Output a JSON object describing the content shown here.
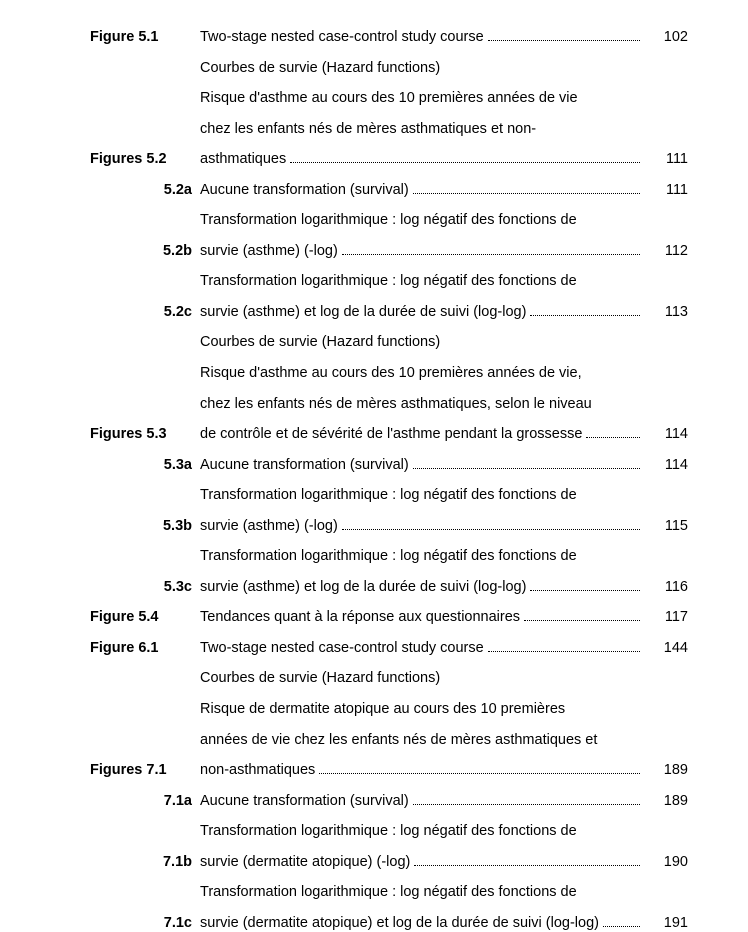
{
  "entries": [
    {
      "label": "Figure  5.1",
      "labelClass": "",
      "lines": [
        "Two-stage nested case-control study course"
      ],
      "page": "102"
    },
    {
      "label": "Figures 5.2",
      "labelClass": "",
      "lines": [
        "Courbes de survie (Hazard functions)",
        "Risque d'asthme au cours des 10 premières années de vie",
        "chez les enfants nés de mères asthmatiques et non-",
        "asthmatiques"
      ],
      "page": "111"
    },
    {
      "label": "5.2a",
      "labelClass": "sub",
      "lines": [
        "Aucune transformation (survival)"
      ],
      "page": "111"
    },
    {
      "label": "5.2b",
      "labelClass": "sub",
      "lines": [
        "Transformation logarithmique : log négatif des fonctions de",
        "survie (asthme) (-log)"
      ],
      "page": "112"
    },
    {
      "label": "5.2c",
      "labelClass": "sub",
      "lines": [
        "Transformation logarithmique : log négatif des fonctions de",
        "survie (asthme) et log de la durée de suivi (log-log)"
      ],
      "page": "113"
    },
    {
      "label": "Figures 5.3",
      "labelClass": "",
      "lines": [
        "Courbes de survie (Hazard functions)",
        "Risque d'asthme au cours des 10 premières années de vie,",
        "chez les enfants nés de mères asthmatiques, selon le niveau",
        "de contrôle et de sévérité de l'asthme pendant la grossesse"
      ],
      "page": "114"
    },
    {
      "label": "5.3a",
      "labelClass": "sub",
      "lines": [
        "Aucune transformation (survival)"
      ],
      "page": "114"
    },
    {
      "label": "5.3b",
      "labelClass": "sub",
      "lines": [
        "Transformation logarithmique : log négatif des fonctions de",
        "survie (asthme) (-log)"
      ],
      "page": "115"
    },
    {
      "label": "5.3c",
      "labelClass": "sub",
      "lines": [
        "Transformation logarithmique : log négatif des fonctions de",
        "survie (asthme) et log de la durée de suivi (log-log)"
      ],
      "page": "116"
    },
    {
      "label": "Figure  5.4",
      "labelClass": "",
      "lines": [
        "Tendances quant à la réponse aux questionnaires"
      ],
      "page": "117"
    },
    {
      "label": "Figure  6.1",
      "labelClass": "",
      "lines": [
        "Two-stage nested case-control study course"
      ],
      "page": "144"
    },
    {
      "label": "Figures 7.1",
      "labelClass": "",
      "lines": [
        "Courbes de survie (Hazard functions)",
        "Risque de dermatite atopique au cours des 10 premières",
        "années de vie chez les enfants nés de mères asthmatiques et",
        "non-asthmatiques"
      ],
      "page": "189"
    },
    {
      "label": "7.1a",
      "labelClass": "sub",
      "lines": [
        "Aucune transformation (survival)"
      ],
      "page": "189"
    },
    {
      "label": "7.1b",
      "labelClass": "sub",
      "lines": [
        "Transformation logarithmique : log négatif des fonctions de",
        "survie (dermatite atopique) (-log)"
      ],
      "page": "190"
    },
    {
      "label": "7.1c",
      "labelClass": "sub",
      "lines": [
        "Transformation logarithmique : log négatif des fonctions de",
        "survie (dermatite atopique) et log de la durée de suivi (log-log)"
      ],
      "page": "191"
    }
  ]
}
